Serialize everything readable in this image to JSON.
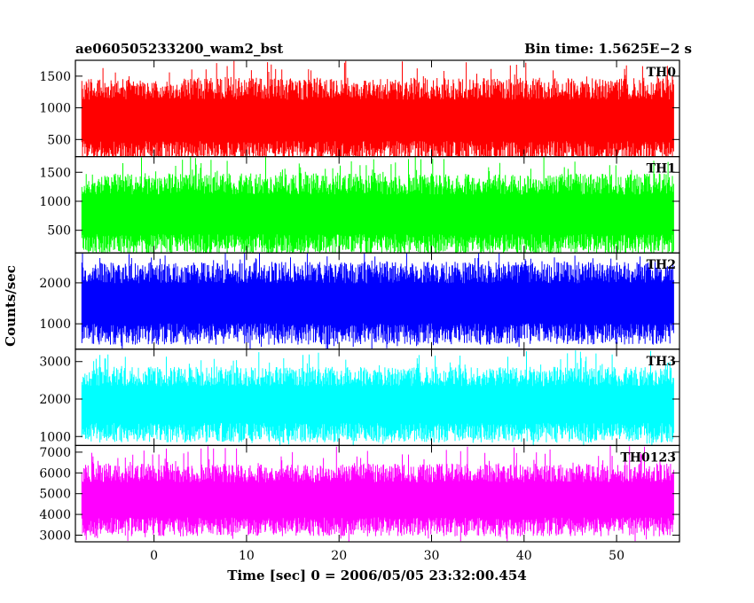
{
  "chart_data": {
    "type": "line",
    "title": "ae060505233200_wam2_bst",
    "subtitle": "Bin time: 1.5625E−2 s",
    "xlabel": "Time [sec] 0 = 2006/05/05 23:32:00.454",
    "ylabel": "Counts/sec",
    "xlim": [
      -8.5,
      56.8
    ],
    "x_data_range": [
      -7.8,
      56.2
    ],
    "x_ticks": [
      0,
      10,
      20,
      30,
      40,
      50
    ],
    "grid": false,
    "legend": "none",
    "panels": [
      {
        "name": "TH0",
        "color": "#ff0000",
        "ylim": [
          230,
          1750
        ],
        "y_ticks": [
          500,
          1000,
          1500
        ],
        "lower_envelope": 300,
        "upper_envelope": 1300,
        "envelope_peak": 1750
      },
      {
        "name": "TH1",
        "color": "#00ff00",
        "ylim": [
          110,
          1770
        ],
        "y_ticks": [
          500,
          1000,
          1500
        ],
        "lower_envelope": 250,
        "upper_envelope": 1300,
        "envelope_peak": 1770
      },
      {
        "name": "TH2",
        "color": "#0000ff",
        "ylim": [
          380,
          2730
        ],
        "y_ticks": [
          1000,
          2000
        ],
        "lower_envelope": 750,
        "upper_envelope": 2250,
        "envelope_peak": 2730
      },
      {
        "name": "TH3",
        "color": "#00ffff",
        "ylim": [
          760,
          3330
        ],
        "y_ticks": [
          1000,
          2000,
          3000
        ],
        "lower_envelope": 1100,
        "upper_envelope": 2600,
        "envelope_peak": 3300
      },
      {
        "name": "TH0123",
        "color": "#ff00ff",
        "ylim": [
          2680,
          7320
        ],
        "y_ticks": [
          3000,
          4000,
          5000,
          6000,
          7000
        ],
        "lower_envelope": 3400,
        "upper_envelope": 6000,
        "envelope_peak": 7300
      }
    ]
  }
}
